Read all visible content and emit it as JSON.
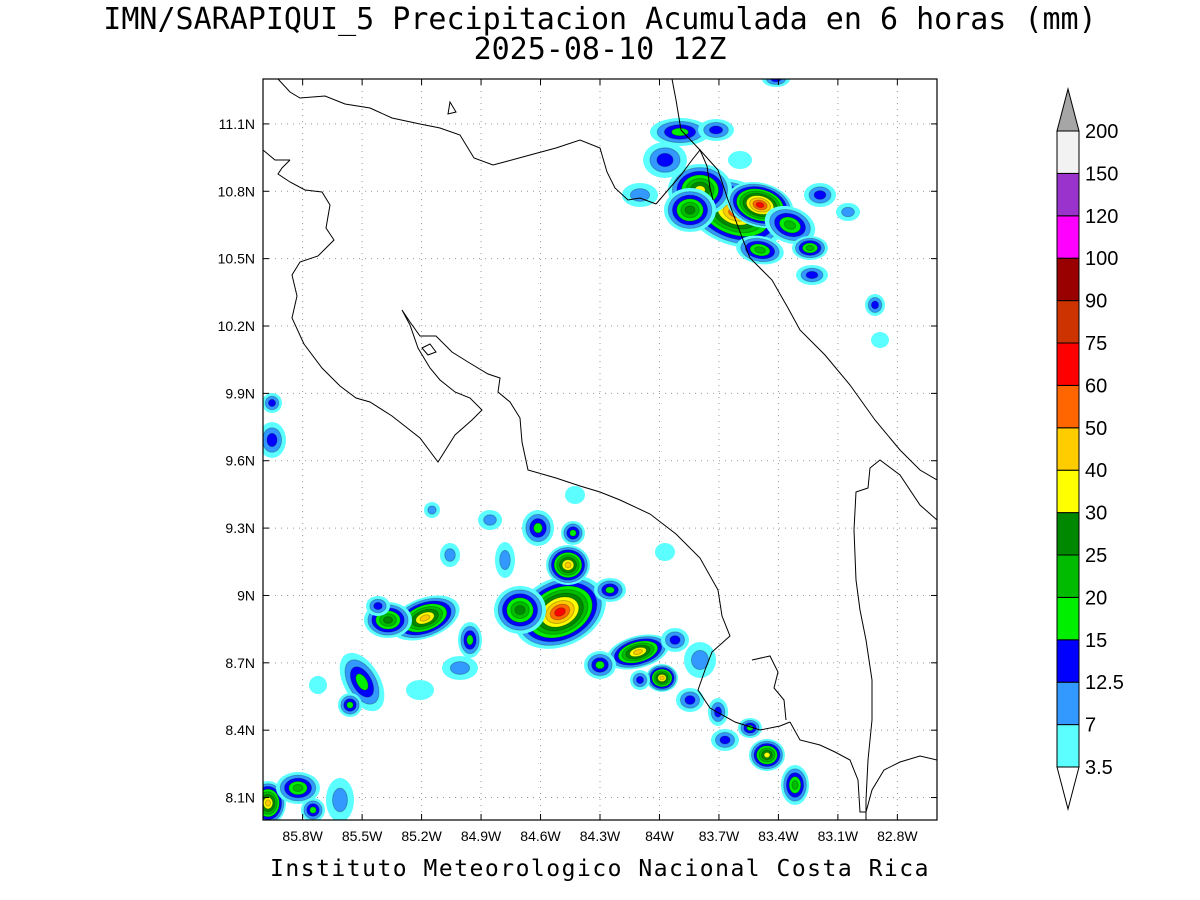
{
  "header": {
    "title": "IMN/SARAPIQUI_5 Precipitacion Acumulada en 6 horas (mm)",
    "subtitle": "2025-08-10 12Z"
  },
  "footer": {
    "credit": "Instituto Meteorologico Nacional Costa Rica"
  },
  "map": {
    "lon_range": [
      -86.0,
      -82.6
    ],
    "lat_range": [
      8.0,
      11.3
    ],
    "lon_ticks": [
      "85.8W",
      "85.5W",
      "85.2W",
      "84.9W",
      "84.6W",
      "84.3W",
      "84W",
      "83.7W",
      "83.4W",
      "83.1W",
      "82.8W"
    ],
    "lon_tick_values": [
      -85.8,
      -85.5,
      -85.2,
      -84.9,
      -84.6,
      -84.3,
      -84.0,
      -83.7,
      -83.4,
      -83.1,
      -82.8
    ],
    "lat_ticks": [
      "8.1N",
      "8.4N",
      "8.7N",
      "9N",
      "9.3N",
      "9.6N",
      "9.9N",
      "10.2N",
      "10.5N",
      "10.8N",
      "11.1N"
    ],
    "lat_tick_values": [
      8.1,
      8.4,
      8.7,
      9.0,
      9.3,
      9.6,
      9.9,
      10.2,
      10.5,
      10.8,
      11.1
    ],
    "grid": "dotted"
  },
  "colorbar": {
    "levels": [
      "3.5",
      "7",
      "12.5",
      "15",
      "20",
      "25",
      "30",
      "40",
      "50",
      "60",
      "75",
      "90",
      "100",
      "120",
      "150",
      "200"
    ],
    "colors": [
      "#5cffff",
      "#3399ff",
      "#0000ff",
      "#00ee00",
      "#00bb00",
      "#008800",
      "#ffff00",
      "#ffcc00",
      "#ff6600",
      "#ff0000",
      "#cc3300",
      "#990000",
      "#ff00ff",
      "#9933cc",
      "#f2f2f2",
      "#a6a6a6"
    ],
    "end_arrow_colors": {
      "top": "#a6a6a6",
      "bottom": "#ffffff"
    }
  }
}
